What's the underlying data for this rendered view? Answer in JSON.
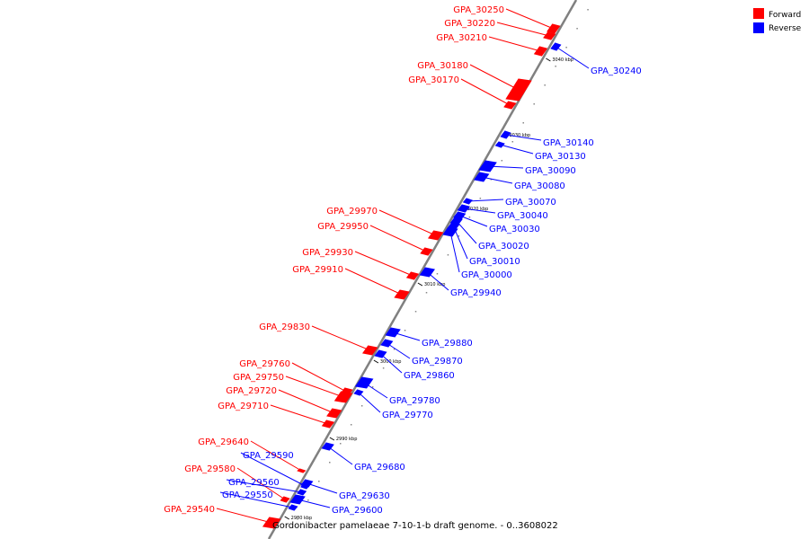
{
  "legend": {
    "forward": {
      "label": "Forward",
      "color": "#ff0000"
    },
    "reverse": {
      "label": "Reverse",
      "color": "#0000ff"
    }
  },
  "axis": {
    "caption": "Gordonibacter pamelaeae 7-10-1-b draft genome. - 0..3608022",
    "axis_color": "#808080",
    "ticks": [
      "3040 kbp",
      "3030 kbp",
      "3020 kbp",
      "3010 kbp",
      "3000 kbp",
      "2990 kbp",
      "2980 kbp"
    ]
  },
  "genes": [
    {
      "name": "GPA_30250",
      "strand": "forward"
    },
    {
      "name": "GPA_30220",
      "strand": "forward"
    },
    {
      "name": "GPA_30210",
      "strand": "forward"
    },
    {
      "name": "GPA_30180",
      "strand": "forward"
    },
    {
      "name": "GPA_30170",
      "strand": "forward"
    },
    {
      "name": "GPA_30240",
      "strand": "reverse"
    },
    {
      "name": "GPA_30140",
      "strand": "reverse"
    },
    {
      "name": "GPA_30130",
      "strand": "reverse"
    },
    {
      "name": "GPA_30090",
      "strand": "reverse"
    },
    {
      "name": "GPA_30080",
      "strand": "reverse"
    },
    {
      "name": "GPA_30070",
      "strand": "reverse"
    },
    {
      "name": "GPA_30040",
      "strand": "reverse"
    },
    {
      "name": "GPA_30030",
      "strand": "reverse"
    },
    {
      "name": "GPA_30020",
      "strand": "reverse"
    },
    {
      "name": "GPA_30010",
      "strand": "reverse"
    },
    {
      "name": "GPA_30000",
      "strand": "reverse"
    },
    {
      "name": "GPA_29940",
      "strand": "reverse"
    },
    {
      "name": "GPA_29970",
      "strand": "forward"
    },
    {
      "name": "GPA_29950",
      "strand": "forward"
    },
    {
      "name": "GPA_29930",
      "strand": "forward"
    },
    {
      "name": "GPA_29910",
      "strand": "forward"
    },
    {
      "name": "GPA_29830",
      "strand": "forward"
    },
    {
      "name": "GPA_29880",
      "strand": "reverse"
    },
    {
      "name": "GPA_29870",
      "strand": "reverse"
    },
    {
      "name": "GPA_29860",
      "strand": "reverse"
    },
    {
      "name": "GPA_29760",
      "strand": "forward"
    },
    {
      "name": "GPA_29750",
      "strand": "forward"
    },
    {
      "name": "GPA_29720",
      "strand": "forward"
    },
    {
      "name": "GPA_29710",
      "strand": "forward"
    },
    {
      "name": "GPA_29780",
      "strand": "reverse"
    },
    {
      "name": "GPA_29770",
      "strand": "reverse"
    },
    {
      "name": "GPA_29680",
      "strand": "reverse"
    },
    {
      "name": "GPA_29640",
      "strand": "forward"
    },
    {
      "name": "GPA_29590",
      "strand": "reverse"
    },
    {
      "name": "GPA_29580",
      "strand": "forward"
    },
    {
      "name": "GPA_29560",
      "strand": "reverse"
    },
    {
      "name": "GPA_29550",
      "strand": "reverse"
    },
    {
      "name": "GPA_29540",
      "strand": "forward"
    },
    {
      "name": "GPA_29630",
      "strand": "reverse"
    },
    {
      "name": "GPA_29600",
      "strand": "reverse"
    }
  ]
}
